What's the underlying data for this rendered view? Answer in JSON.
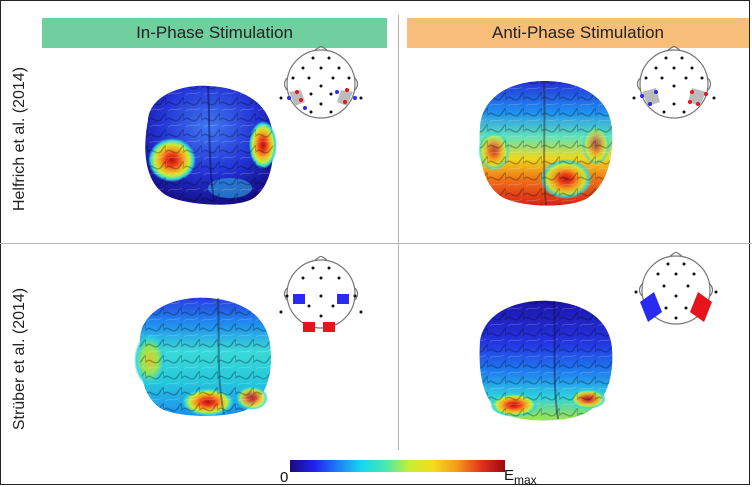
{
  "columns": {
    "in_phase": "In-Phase Stimulation",
    "anti_phase": "Anti-Phase Stimulation"
  },
  "rows": {
    "top": "Helfrich et al. (2014)",
    "bottom": "Strüber et al. (2014)"
  },
  "colorbar": {
    "min_label": "0",
    "max_label_main": "E",
    "max_label_sub": "max"
  },
  "colors": {
    "in_phase_header": "#6fcf9f",
    "anti_phase_header": "#f8bd78",
    "electrode_positive": "#e8141b",
    "electrode_negative": "#2a2af0",
    "colormap": [
      "#1b0a7e",
      "#2020f0",
      "#1e7ff5",
      "#16d8ee",
      "#48e8b0",
      "#c6ee35",
      "#f4dc1c",
      "#f39a1a",
      "#e5321c",
      "#970a10"
    ]
  }
}
